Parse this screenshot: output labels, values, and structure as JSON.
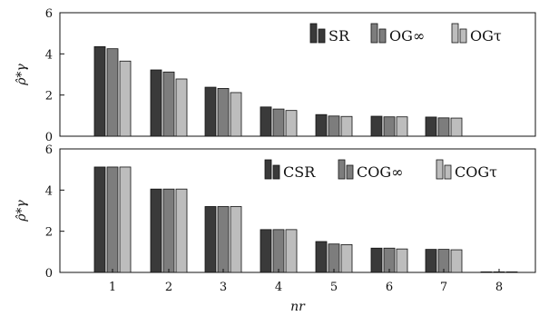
{
  "chart_data": [
    {
      "type": "bar",
      "categories": [
        "1",
        "2",
        "3",
        "4",
        "5",
        "6",
        "7"
      ],
      "series": [
        {
          "name": "SR",
          "values": [
            4.35,
            3.22,
            2.38,
            1.42,
            1.05,
            0.97,
            0.93
          ]
        },
        {
          "name": "OG∞",
          "values": [
            4.25,
            3.12,
            2.32,
            1.32,
            0.98,
            0.94,
            0.89
          ]
        },
        {
          "name": "OGτ",
          "values": [
            3.65,
            2.78,
            2.12,
            1.25,
            0.96,
            0.94,
            0.88
          ]
        }
      ],
      "ylabel": "ρ̂*γ",
      "ylim": [
        0,
        6
      ],
      "yticks": [
        "0",
        "2",
        "4",
        "6"
      ],
      "legend": {
        "entries": [
          "SR",
          "OG∞",
          "OGτ"
        ],
        "position": "top-right"
      },
      "colors": [
        "#3a3a3a",
        "#7d7d7d",
        "#bdbdbd"
      ],
      "grid": false
    },
    {
      "type": "bar",
      "categories": [
        "1",
        "2",
        "3",
        "4",
        "5",
        "6",
        "7",
        "8"
      ],
      "series": [
        {
          "name": "CSR",
          "values": [
            5.12,
            4.05,
            3.2,
            2.08,
            1.5,
            1.18,
            1.12,
            0.02
          ]
        },
        {
          "name": "COG∞",
          "values": [
            5.12,
            4.05,
            3.2,
            2.08,
            1.38,
            1.18,
            1.12,
            0.02
          ]
        },
        {
          "name": "COGτ",
          "values": [
            5.12,
            4.05,
            3.2,
            2.08,
            1.35,
            1.14,
            1.1,
            0.02
          ]
        }
      ],
      "xlabel": "nr",
      "ylabel": "ρ̂*γ",
      "ylim": [
        0,
        6
      ],
      "yticks": [
        "0",
        "2",
        "4",
        "6"
      ],
      "legend": {
        "entries": [
          "CSR",
          "COG∞",
          "COGτ"
        ],
        "position": "top-right"
      },
      "colors": [
        "#3a3a3a",
        "#7d7d7d",
        "#bdbdbd"
      ],
      "grid": false
    }
  ]
}
